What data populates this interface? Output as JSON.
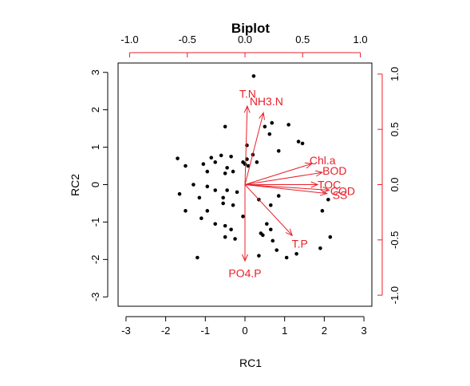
{
  "chart_data": {
    "type": "scatter",
    "title": "Biplot",
    "xlabel": "RC1",
    "ylabel": "RC2",
    "xlim": [
      -3.2,
      3.2
    ],
    "ylim": [
      -3.25,
      3.25
    ],
    "x_ticks": [
      "-3",
      "-2",
      "-1",
      "0",
      "1",
      "2",
      "3"
    ],
    "y_ticks": [
      "-3",
      "-2",
      "-1",
      "0",
      "1",
      "2",
      "3"
    ],
    "loading_ticks_top": [
      "-1.0",
      "-0.5",
      "0.0",
      "0.5",
      "1.0"
    ],
    "loading_ticks_right": [
      "-1.0",
      "-0.5",
      "0.0",
      "0.5",
      "1.0"
    ],
    "loading_lim": [
      -1.1,
      1.1
    ],
    "grid": false,
    "colors": {
      "points": "#000000",
      "loadings": "#e8202a"
    },
    "points": [
      [
        0.22,
        2.9
      ],
      [
        0.5,
        1.55
      ],
      [
        0.68,
        1.65
      ],
      [
        1.1,
        1.6
      ],
      [
        -0.5,
        1.55
      ],
      [
        0.62,
        1.35
      ],
      [
        1.35,
        1.15
      ],
      [
        1.45,
        1.1
      ],
      [
        0.05,
        1.05
      ],
      [
        0.85,
        0.9
      ],
      [
        0.2,
        0.8
      ],
      [
        -0.35,
        0.75
      ],
      [
        0.05,
        0.68
      ],
      [
        -1.7,
        0.7
      ],
      [
        -0.85,
        0.72
      ],
      [
        -0.75,
        0.6
      ],
      [
        -0.6,
        0.78
      ],
      [
        -1.5,
        0.5
      ],
      [
        -1.05,
        0.55
      ],
      [
        -0.45,
        0.45
      ],
      [
        -0.95,
        0.35
      ],
      [
        -0.5,
        0.3
      ],
      [
        -0.3,
        0.35
      ],
      [
        -0.05,
        0.6
      ],
      [
        0.0,
        0.55
      ],
      [
        0.08,
        0.5
      ],
      [
        0.3,
        0.6
      ],
      [
        -1.3,
        0.0
      ],
      [
        -0.95,
        -0.05
      ],
      [
        -0.75,
        -0.15
      ],
      [
        -0.45,
        -0.15
      ],
      [
        -0.2,
        -0.2
      ],
      [
        -1.65,
        -0.25
      ],
      [
        -1.15,
        -0.35
      ],
      [
        -0.55,
        -0.35
      ],
      [
        -0.3,
        -0.55
      ],
      [
        -0.55,
        -0.5
      ],
      [
        0.35,
        -0.4
      ],
      [
        0.85,
        -0.3
      ],
      [
        2.1,
        -0.4
      ],
      [
        1.95,
        -0.7
      ],
      [
        -1.5,
        -0.7
      ],
      [
        -0.95,
        -0.7
      ],
      [
        -1.1,
        -0.9
      ],
      [
        -0.75,
        -1.05
      ],
      [
        -0.05,
        -0.85
      ],
      [
        0.55,
        -1.05
      ],
      [
        0.65,
        -0.55
      ],
      [
        -0.5,
        -1.1
      ],
      [
        -0.35,
        -1.2
      ],
      [
        -0.5,
        -1.4
      ],
      [
        -0.25,
        -1.45
      ],
      [
        0.4,
        -1.3
      ],
      [
        0.45,
        -1.35
      ],
      [
        0.7,
        -1.5
      ],
      [
        0.35,
        -1.9
      ],
      [
        0.8,
        -1.75
      ],
      [
        1.05,
        -1.95
      ],
      [
        1.9,
        -1.7
      ],
      [
        2.15,
        -1.4
      ],
      [
        1.3,
        -1.85
      ],
      [
        -1.2,
        -1.95
      ],
      [
        0.65,
        -1.2
      ]
    ],
    "loadings": [
      {
        "name": "T.N",
        "x": 0.02,
        "y": 0.71
      },
      {
        "name": "NH3.N",
        "x": 0.16,
        "y": 0.65
      },
      {
        "name": "Chl.a",
        "x": 0.58,
        "y": 0.19
      },
      {
        "name": "BOD",
        "x": 0.67,
        "y": 0.11
      },
      {
        "name": "TOC",
        "x": 0.63,
        "y": 0.0
      },
      {
        "name": "COD",
        "x": 0.73,
        "y": -0.05
      },
      {
        "name": "SS",
        "x": 0.71,
        "y": -0.08
      },
      {
        "name": "T.P",
        "x": 0.41,
        "y": -0.46
      },
      {
        "name": "PO4.P",
        "x": 0.0,
        "y": -0.69
      }
    ]
  }
}
